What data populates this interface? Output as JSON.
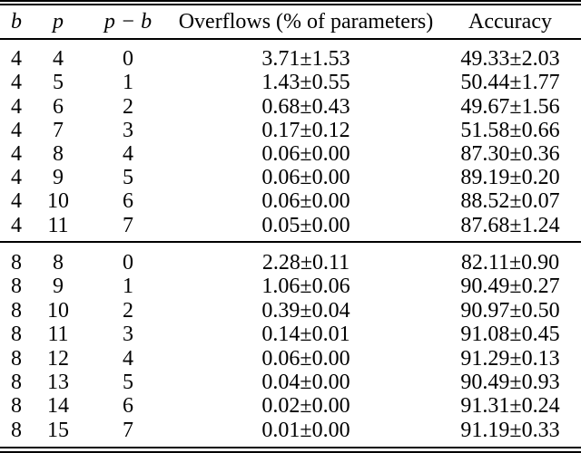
{
  "table": {
    "columns": [
      {
        "label": "b"
      },
      {
        "label": "p"
      },
      {
        "label": "p − b"
      },
      {
        "label": "Overflows (% of parameters)"
      },
      {
        "label": "Accuracy"
      }
    ],
    "rows": [
      {
        "b": "4",
        "p": "4",
        "p_minus_b": "0",
        "overflows": "3.71±1.53",
        "accuracy": "49.33±2.03"
      },
      {
        "b": "4",
        "p": "5",
        "p_minus_b": "1",
        "overflows": "1.43±0.55",
        "accuracy": "50.44±1.77"
      },
      {
        "b": "4",
        "p": "6",
        "p_minus_b": "2",
        "overflows": "0.68±0.43",
        "accuracy": "49.67±1.56"
      },
      {
        "b": "4",
        "p": "7",
        "p_minus_b": "3",
        "overflows": "0.17±0.12",
        "accuracy": "51.58±0.66"
      },
      {
        "b": "4",
        "p": "8",
        "p_minus_b": "4",
        "overflows": "0.06±0.00",
        "accuracy": "87.30±0.36"
      },
      {
        "b": "4",
        "p": "9",
        "p_minus_b": "5",
        "overflows": "0.06±0.00",
        "accuracy": "89.19±0.20"
      },
      {
        "b": "4",
        "p": "10",
        "p_minus_b": "6",
        "overflows": "0.06±0.00",
        "accuracy": "88.52±0.07"
      },
      {
        "b": "4",
        "p": "11",
        "p_minus_b": "7",
        "overflows": "0.05±0.00",
        "accuracy": "87.68±1.24"
      },
      {
        "b": "8",
        "p": "8",
        "p_minus_b": "0",
        "overflows": "2.28±0.11",
        "accuracy": "82.11±0.90"
      },
      {
        "b": "8",
        "p": "9",
        "p_minus_b": "1",
        "overflows": "1.06±0.06",
        "accuracy": "90.49±0.27"
      },
      {
        "b": "8",
        "p": "10",
        "p_minus_b": "2",
        "overflows": "0.39±0.04",
        "accuracy": "90.97±0.50"
      },
      {
        "b": "8",
        "p": "11",
        "p_minus_b": "3",
        "overflows": "0.14±0.01",
        "accuracy": "91.08±0.45"
      },
      {
        "b": "8",
        "p": "12",
        "p_minus_b": "4",
        "overflows": "0.06±0.00",
        "accuracy": "91.29±0.13"
      },
      {
        "b": "8",
        "p": "13",
        "p_minus_b": "5",
        "overflows": "0.04±0.00",
        "accuracy": "90.49±0.93"
      },
      {
        "b": "8",
        "p": "14",
        "p_minus_b": "6",
        "overflows": "0.02±0.00",
        "accuracy": "91.31±0.24"
      },
      {
        "b": "8",
        "p": "15",
        "p_minus_b": "7",
        "overflows": "0.01±0.00",
        "accuracy": "91.19±0.33"
      }
    ]
  }
}
